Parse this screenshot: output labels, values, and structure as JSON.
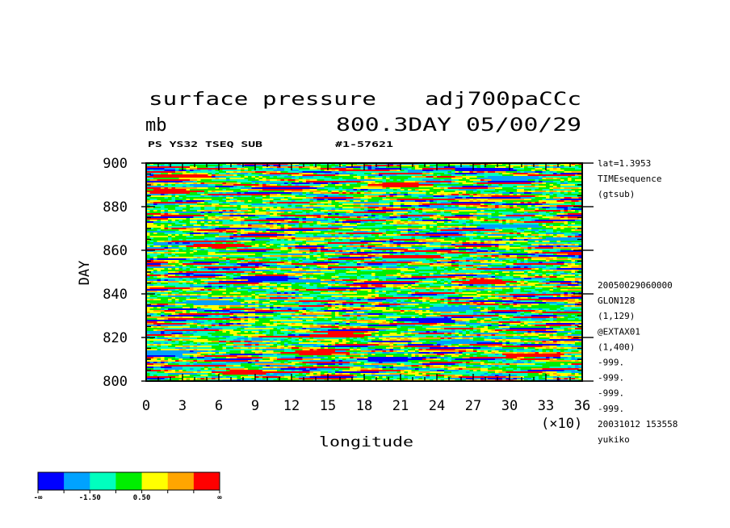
{
  "chart_data": {
    "type": "heatmap",
    "title": "surface pressure",
    "run_name": "adj700paCCc",
    "units": "mb",
    "time_label": "800.3DAY 05/00/29",
    "subtitle_left": "PS YS32 TSEQ SUB",
    "subtitle_right": "#1-57621",
    "xlabel": "longitude",
    "ylabel": "DAY",
    "x_multiplier": "(×10)",
    "xlim": [
      0,
      36
    ],
    "ylim": [
      800,
      900
    ],
    "x_ticks": [
      "0",
      "3",
      "6",
      "9",
      "12",
      "15",
      "18",
      "21",
      "24",
      "27",
      "30",
      "33",
      "36"
    ],
    "y_ticks": [
      "800",
      "820",
      "840",
      "860",
      "880",
      "900"
    ],
    "info_top": [
      "lat=1.3953",
      "TIMEsequence",
      "(gtsub)"
    ],
    "info_bottom": [
      "20050029060000",
      "GLON128",
      "(1,129)",
      "@EXTAX01",
      "(1,400)",
      "-999.",
      "-999.",
      "-999.",
      "-999.",
      "20031012 153558",
      "yukiko"
    ],
    "colorbar": {
      "colors": [
        "#0000ff",
        "#00a2ff",
        "#00ffbe",
        "#00ee00",
        "#ffff00",
        "#ffa500",
        "#ff0000"
      ],
      "labels": [
        "-∞",
        "-1.50",
        "0.50",
        "∞"
      ]
    },
    "features": [
      {
        "x": 10.0,
        "y": 847.0,
        "level": 0
      },
      {
        "x": 12.0,
        "y": 846.0,
        "level": 1
      },
      {
        "x": 28.0,
        "y": 845.5,
        "level": 6
      },
      {
        "x": 28.0,
        "y": 897.0,
        "level": 0
      },
      {
        "x": 30.0,
        "y": 893.0,
        "level": 1
      },
      {
        "x": 2.8,
        "y": 894.0,
        "level": 6
      },
      {
        "x": 1.5,
        "y": 813.0,
        "level": 1
      },
      {
        "x": 32.0,
        "y": 812.0,
        "level": 6
      },
      {
        "x": 23.0,
        "y": 828.0,
        "level": 0
      },
      {
        "x": 5.0,
        "y": 836.0,
        "level": 1
      },
      {
        "x": 20.0,
        "y": 810.0,
        "level": 0
      },
      {
        "x": 25.0,
        "y": 833.0,
        "level": 1
      },
      {
        "x": 35.0,
        "y": 865.0,
        "level": 1
      },
      {
        "x": 8.0,
        "y": 804.0,
        "level": 6
      },
      {
        "x": 3.0,
        "y": 863.0,
        "level": 1
      },
      {
        "x": 30.0,
        "y": 871.0,
        "level": 1
      },
      {
        "x": 21.0,
        "y": 890.0,
        "level": 5
      },
      {
        "x": 16.0,
        "y": 821.0,
        "level": 5
      },
      {
        "x": 22.0,
        "y": 857.0,
        "level": 5
      },
      {
        "x": 26.0,
        "y": 818.0,
        "level": 1
      },
      {
        "x": 14.0,
        "y": 813.0,
        "level": 5
      },
      {
        "x": 6.0,
        "y": 862.0,
        "level": 5
      },
      {
        "x": 2.0,
        "y": 887.0,
        "level": 5
      }
    ]
  }
}
